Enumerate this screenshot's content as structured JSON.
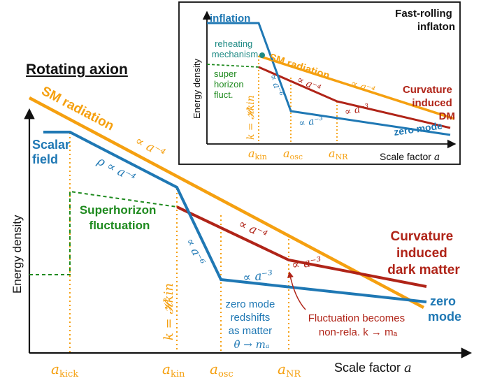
{
  "colors": {
    "orange": "#F5A010",
    "blue": "#1F78B4",
    "red": "#B02418",
    "green": "#1E8A1E",
    "teal": "#1E8A84",
    "black": "#111111"
  },
  "main": {
    "title": "Rotating axion",
    "axis_x_label": "Scale factor ",
    "axis_x_var": "a",
    "axis_y_label": "Energy density",
    "sm_radiation": "SM radiation",
    "sm_scaling": "∝ a⁻⁴",
    "scalar_field": [
      "Scalar",
      "field"
    ],
    "rho_scaling": "ρ ∝ a⁻⁴",
    "a6_scaling": "∝ a⁻⁶",
    "a3_scaling": "∝ a⁻³",
    "red_a4_scaling": "∝ a⁻⁴",
    "red_a3_scaling": "∝ a⁻³",
    "superhorizon": [
      "Superhorizon",
      "fluctuation"
    ],
    "curvature_dm": [
      "Curvature",
      "induced",
      "dark matter"
    ],
    "zero_mode": [
      "zero",
      "mode"
    ],
    "zero_mode_note": [
      "zero mode",
      "redshifts",
      "as matter",
      "θ̇ → mₐ"
    ],
    "fluct_note": [
      "Fluctuation becomes",
      "non-rela. k → mₐ"
    ],
    "k_label": "k = 𝓗kin",
    "ticks": [
      "a_kick",
      "a_kin",
      "a_osc",
      "a_NR"
    ]
  },
  "inset": {
    "title": [
      "Fast-rolling",
      "inflaton"
    ],
    "inflation": "inflation",
    "reheating": [
      "reheating",
      "mechanism"
    ],
    "super": [
      "super",
      "horizon",
      "fluct."
    ],
    "sm_radiation": "SM radiation",
    "sm_scaling": "∝ a⁻⁴",
    "a6_scaling": "∝ a⁻⁶",
    "a3_scaling": "∝ a⁻³",
    "red_a4_scaling": "∝ a⁻⁴",
    "red_a3_scaling": "∝ a⁻³",
    "curvature_dm": [
      "Curvature",
      "induced",
      "DM"
    ],
    "zero_mode": "zero mode",
    "axis_x_label": "Scale factor ",
    "axis_x_var": "a",
    "axis_y_label": "Energy density",
    "k_label": "k = 𝓗kin",
    "ticks": [
      "a_kin",
      "a_osc",
      "a_NR"
    ]
  }
}
